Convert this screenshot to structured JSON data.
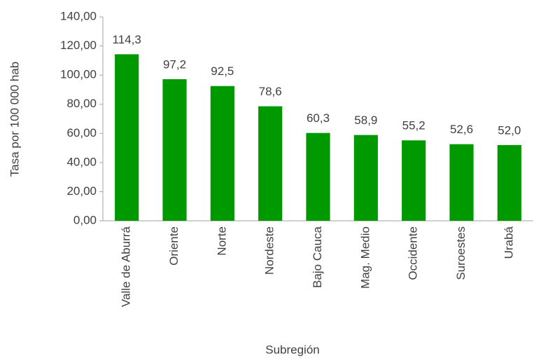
{
  "chart_data": {
    "type": "bar",
    "categories": [
      "Valle de Aburrá",
      "Oriente",
      "Norte",
      "Nordeste",
      "Bajo Cauca",
      "Mag. Medio",
      "Occidente",
      "Suroestes",
      "Urabá"
    ],
    "values": [
      114.3,
      97.2,
      92.5,
      78.6,
      60.3,
      58.9,
      55.2,
      52.6,
      52.0
    ],
    "value_labels": [
      "114,3",
      "97,2",
      "92,5",
      "78,6",
      "60,3",
      "58,9",
      "55,2",
      "52,6",
      "52,0"
    ],
    "color": "#009900",
    "ylim": [
      0,
      140
    ],
    "yticks": [
      {
        "value": 0,
        "label": "0,00"
      },
      {
        "value": 20,
        "label": "20,00"
      },
      {
        "value": 40,
        "label": "40,00"
      },
      {
        "value": 60,
        "label": "60,00"
      },
      {
        "value": 80,
        "label": "80,00"
      },
      {
        "value": 100,
        "label": "100,00"
      },
      {
        "value": 120,
        "label": "120,00"
      },
      {
        "value": 140,
        "label": "140,00"
      }
    ],
    "y_label": "Tasa  por 100 000 hab",
    "x_label": "Subregión",
    "grid": false
  }
}
